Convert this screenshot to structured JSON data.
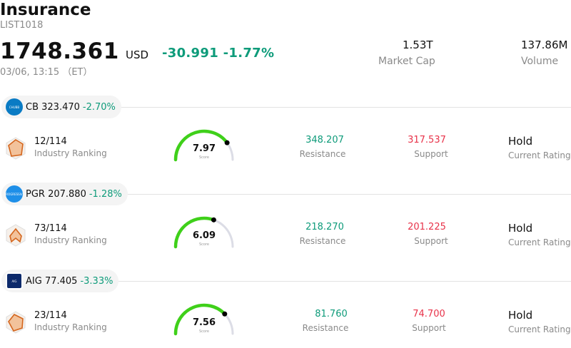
{
  "header": {
    "title": "Insurance",
    "list_code": "LIST1018",
    "price": "1748.361",
    "currency": "USD",
    "change_abs": "-30.991",
    "change_pct": "-1.77%",
    "timestamp": "03/06, 13:15 （ET）",
    "market_cap_value": "1.53T",
    "market_cap_label": "Market Cap",
    "volume_value": "137.86M",
    "volume_label": "Volume"
  },
  "colors": {
    "up": "#0e9b7a",
    "down": "#e8334a",
    "gauge": "#3fd01a",
    "gauge_track": "#dcdde6"
  },
  "stocks": [
    {
      "ticker": "CB",
      "price": "323.470",
      "change": "-2.70%",
      "logo_icon": "chubb-logo-icon",
      "rank": "12/114",
      "rank_label": "Industry Ranking",
      "score": "7.97",
      "score_label": "Score",
      "score_fraction": 0.797,
      "resistance": "348.207",
      "resistance_label": "Resistance",
      "support": "317.537",
      "support_label": "Support",
      "rating": "Hold",
      "rating_label": "Current Rating"
    },
    {
      "ticker": "PGR",
      "price": "207.880",
      "change": "-1.28%",
      "logo_icon": "progressive-logo-icon",
      "rank": "73/114",
      "rank_label": "Industry Ranking",
      "score": "6.09",
      "score_label": "Score",
      "score_fraction": 0.609,
      "resistance": "218.270",
      "resistance_label": "Resistance",
      "support": "201.225",
      "support_label": "Support",
      "rating": "Hold",
      "rating_label": "Current Rating"
    },
    {
      "ticker": "AIG",
      "price": "77.405",
      "change": "-3.33%",
      "logo_icon": "aig-logo-icon",
      "rank": "23/114",
      "rank_label": "Industry Ranking",
      "score": "7.56",
      "score_label": "Score",
      "score_fraction": 0.756,
      "resistance": "81.760",
      "resistance_label": "Resistance",
      "support": "74.700",
      "support_label": "Support",
      "rating": "Hold",
      "rating_label": "Current Rating"
    }
  ]
}
